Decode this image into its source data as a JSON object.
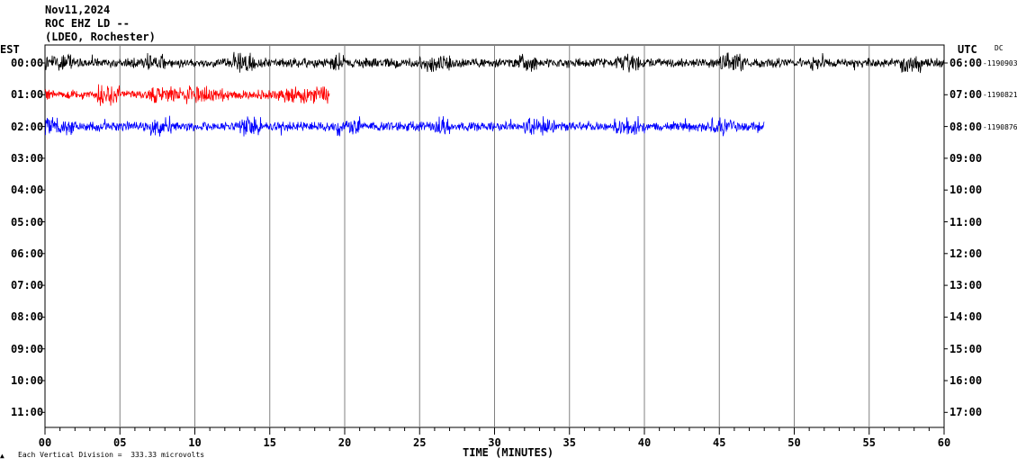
{
  "header": {
    "date": "Nov11,2024",
    "station": "ROC EHZ LD --",
    "network": "(LDEO, Rochester)"
  },
  "left_axis_title": "EST",
  "right_axis_title": "UTC",
  "dc_label": "DC",
  "footer_note": "Each Vertical Division =  333.33 microvolts",
  "colors": {
    "trace1": "#000000",
    "trace2": "#ff0000",
    "trace3": "#0000ff",
    "grid": "#808080"
  },
  "chart_data": {
    "type": "line",
    "title": "ROC EHZ LD --",
    "xlabel": "TIME (MINUTES)",
    "x_range": [
      0,
      60
    ],
    "x_ticks": [
      "00",
      "05",
      "10",
      "15",
      "20",
      "25",
      "30",
      "35",
      "40",
      "45",
      "50",
      "55",
      "60"
    ],
    "rows_est": [
      "00:00",
      "01:00",
      "02:00",
      "03:00",
      "04:00",
      "05:00",
      "06:00",
      "07:00",
      "08:00",
      "09:00",
      "10:00",
      "11:00"
    ],
    "rows_utc": [
      "06:00",
      "07:00",
      "08:00",
      "09:00",
      "10:00",
      "11:00",
      "12:00",
      "13:00",
      "14:00",
      "15:00",
      "16:00",
      "17:00"
    ],
    "series": [
      {
        "row": "00:00",
        "end_minute": 60,
        "dc_offset": "-1190903"
      },
      {
        "row": "01:00",
        "end_minute": 19,
        "dc_offset": "-1190821"
      },
      {
        "row": "02:00",
        "end_minute": 48,
        "dc_offset": "-1190876"
      }
    ]
  }
}
